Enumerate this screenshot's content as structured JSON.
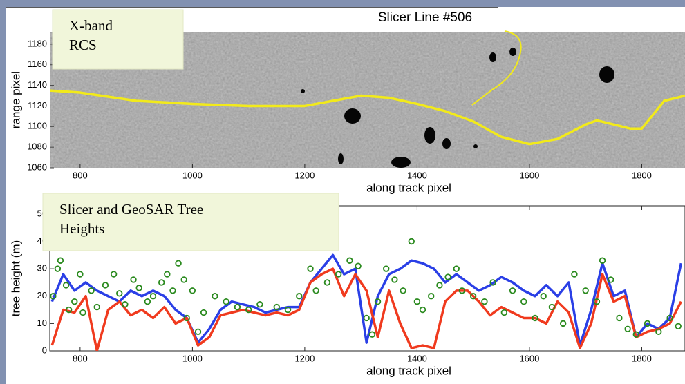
{
  "chart_data": [
    {
      "type": "line",
      "title": "Slicer Line #506",
      "annotation": [
        "X-band",
        "RCS"
      ],
      "xlabel": "along track pixel",
      "ylabel": "range pixel",
      "xlim": [
        746,
        1877
      ],
      "xticks": [
        800,
        1000,
        1200,
        1400,
        1600,
        1800
      ],
      "ylim": [
        1060,
        1192
      ],
      "yticks": [
        1060,
        1080,
        1100,
        1120,
        1140,
        1160,
        1180
      ],
      "x": [
        746,
        800,
        900,
        1000,
        1100,
        1200,
        1250,
        1300,
        1350,
        1400,
        1450,
        1500,
        1550,
        1600,
        1650,
        1700,
        1720,
        1780,
        1800,
        1840,
        1877
      ],
      "series": [
        {
          "color": "#f2ea1a",
          "values": [
            1135,
            1133,
            1125,
            1122,
            1120,
            1120,
            1125,
            1130,
            1128,
            1122,
            1115,
            1105,
            1090,
            1083,
            1088,
            1102,
            1106,
            1098,
            1098,
            1125,
            1130
          ]
        }
      ]
    },
    {
      "type": "line",
      "annotation": [
        "Slicer and GeoSAR Tree",
        "Heights"
      ],
      "xlabel": "along track pixel",
      "ylabel": "tree height (m)",
      "xlim": [
        746,
        1877
      ],
      "xticks": [
        800,
        1000,
        1200,
        1400,
        1600,
        1800
      ],
      "ylim": [
        0,
        53
      ],
      "yticks": [
        0,
        10,
        20,
        30,
        40,
        50
      ],
      "x": [
        750,
        770,
        790,
        810,
        830,
        850,
        870,
        890,
        910,
        930,
        950,
        970,
        990,
        1010,
        1030,
        1050,
        1070,
        1090,
        1110,
        1130,
        1150,
        1170,
        1190,
        1210,
        1230,
        1250,
        1270,
        1290,
        1310,
        1330,
        1350,
        1370,
        1390,
        1410,
        1430,
        1450,
        1470,
        1490,
        1510,
        1530,
        1550,
        1570,
        1590,
        1610,
        1630,
        1650,
        1670,
        1690,
        1710,
        1730,
        1750,
        1770,
        1790,
        1810,
        1830,
        1850,
        1870
      ],
      "series": [
        {
          "color": "#2a3fe6",
          "values": [
            18,
            28,
            22,
            25,
            22,
            20,
            18,
            22,
            20,
            22,
            20,
            15,
            12,
            3,
            8,
            15,
            18,
            17,
            16,
            14,
            15,
            16,
            16,
            25,
            30,
            35,
            28,
            30,
            3,
            20,
            28,
            30,
            33,
            32,
            30,
            25,
            28,
            25,
            22,
            24,
            27,
            25,
            22,
            20,
            24,
            20,
            25,
            2,
            15,
            32,
            20,
            22,
            5,
            10,
            8,
            12,
            32
          ]
        },
        {
          "color": "#f03a1e",
          "values": [
            2,
            15,
            14,
            20,
            0,
            15,
            18,
            13,
            15,
            12,
            16,
            10,
            12,
            2,
            5,
            13,
            14,
            15,
            14,
            13,
            14,
            13,
            15,
            25,
            28,
            30,
            20,
            28,
            22,
            5,
            22,
            10,
            1,
            2,
            1,
            18,
            22,
            22,
            18,
            13,
            16,
            14,
            12,
            12,
            10,
            18,
            14,
            1,
            10,
            28,
            18,
            20,
            5,
            7,
            8,
            10,
            18
          ]
        },
        {
          "type": "scatter",
          "color": "#2a8a1e",
          "x": [
            752,
            760,
            765,
            775,
            780,
            790,
            800,
            805,
            820,
            830,
            845,
            860,
            870,
            880,
            895,
            905,
            920,
            930,
            945,
            955,
            965,
            975,
            985,
            990,
            1000,
            1010,
            1020,
            1040,
            1060,
            1080,
            1100,
            1120,
            1150,
            1170,
            1190,
            1210,
            1220,
            1240,
            1260,
            1280,
            1295,
            1310,
            1320,
            1330,
            1345,
            1360,
            1375,
            1390,
            1400,
            1410,
            1425,
            1440,
            1455,
            1470,
            1480,
            1500,
            1520,
            1535,
            1555,
            1570,
            1590,
            1610,
            1625,
            1640,
            1660,
            1680,
            1700,
            1720,
            1730,
            1745,
            1760,
            1775,
            1790,
            1810,
            1830,
            1850,
            1865
          ],
          "values": [
            20,
            30,
            33,
            24,
            15,
            18,
            28,
            14,
            22,
            16,
            24,
            28,
            21,
            17,
            26,
            23,
            18,
            20,
            25,
            28,
            22,
            32,
            26,
            12,
            22,
            7,
            14,
            20,
            18,
            16,
            15,
            17,
            16,
            15,
            20,
            30,
            22,
            25,
            28,
            33,
            31,
            12,
            6,
            18,
            30,
            26,
            22,
            40,
            18,
            15,
            20,
            24,
            27,
            30,
            22,
            20,
            18,
            25,
            14,
            22,
            18,
            12,
            20,
            16,
            10,
            28,
            22,
            18,
            33,
            26,
            12,
            8,
            6,
            10,
            7,
            12,
            9
          ]
        }
      ]
    }
  ]
}
